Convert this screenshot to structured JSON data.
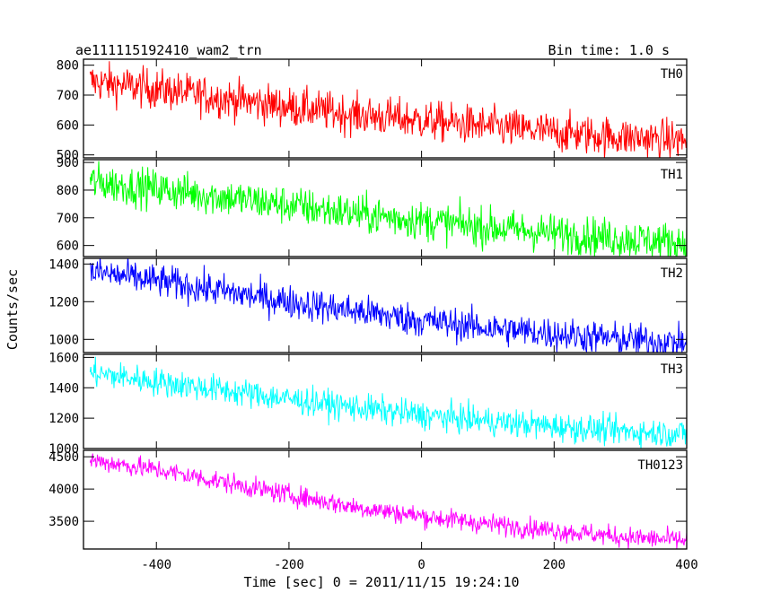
{
  "header": {
    "title": "ae111115192410_wam2_trn",
    "bin_time": "Bin time: 1.0 s"
  },
  "chart_data": {
    "type": "line",
    "title": "ae111115192410_wam2_trn",
    "xlabel": "Time [sec] 0 = 2011/11/15 19:24:10",
    "ylabel": "Counts/sec",
    "xlim": [
      -510,
      400
    ],
    "xticks": [
      -400,
      -200,
      0,
      200,
      400
    ],
    "grid": false,
    "panels": [
      {
        "name": "TH0",
        "color": "#ff0000",
        "ylim": [
          490,
          820
        ],
        "yticks": [
          500,
          600,
          700,
          800
        ],
        "x": [
          -500,
          -400,
          -300,
          -200,
          -100,
          0,
          100,
          200,
          300,
          400
        ],
        "values": [
          745,
          720,
          690,
          660,
          635,
          615,
          595,
          575,
          560,
          548
        ]
      },
      {
        "name": "TH1",
        "color": "#00ff00",
        "ylim": [
          560,
          910
        ],
        "yticks": [
          600,
          700,
          800,
          900
        ],
        "x": [
          -500,
          -400,
          -300,
          -200,
          -100,
          0,
          100,
          200,
          300,
          400
        ],
        "values": [
          830,
          805,
          775,
          745,
          715,
          690,
          665,
          645,
          625,
          610
        ]
      },
      {
        "name": "TH2",
        "color": "#0000ff",
        "ylim": [
          930,
          1430
        ],
        "yticks": [
          1000,
          1200,
          1400
        ],
        "x": [
          -500,
          -400,
          -300,
          -200,
          -100,
          0,
          100,
          200,
          300,
          400
        ],
        "values": [
          1360,
          1310,
          1255,
          1200,
          1150,
          1100,
          1060,
          1030,
          1000,
          980
        ]
      },
      {
        "name": "TH3",
        "color": "#00ffff",
        "ylim": [
          1000,
          1620
        ],
        "yticks": [
          1000,
          1200,
          1400,
          1600
        ],
        "x": [
          -500,
          -400,
          -300,
          -200,
          -100,
          0,
          100,
          200,
          300,
          400
        ],
        "values": [
          1500,
          1440,
          1385,
          1325,
          1270,
          1220,
          1180,
          1145,
          1115,
          1095
        ]
      },
      {
        "name": "TH0123",
        "color": "#ff00ff",
        "ylim": [
          3070,
          4600
        ],
        "yticks": [
          3500,
          4000,
          4500
        ],
        "x": [
          -500,
          -400,
          -300,
          -200,
          -100,
          0,
          100,
          200,
          300,
          400
        ],
        "values": [
          4450,
          4300,
          4110,
          3910,
          3720,
          3580,
          3460,
          3360,
          3260,
          3200
        ]
      }
    ]
  }
}
